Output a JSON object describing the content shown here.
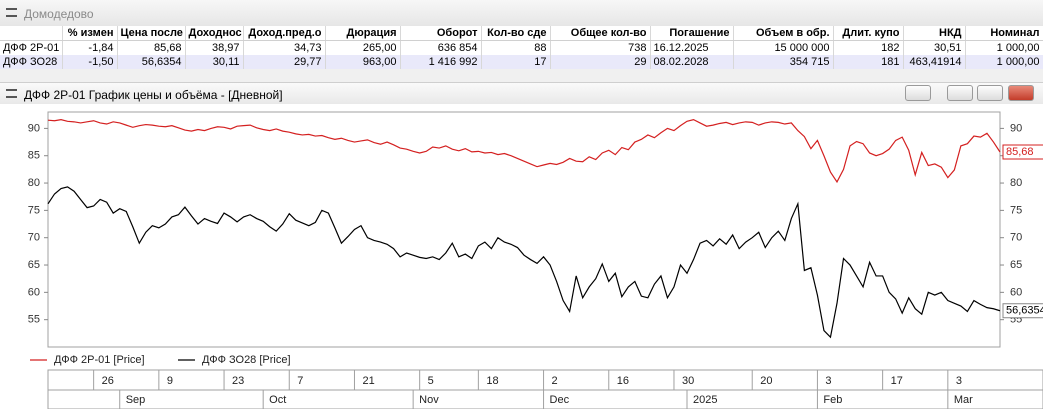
{
  "window": {
    "title": "Домодедово"
  },
  "table": {
    "headers": [
      "% измен",
      "Цена после",
      "Доходнос",
      "Доход.пред.о",
      "Дюрация",
      "Оборот",
      "Кол-во сде",
      "Общее кол-во",
      "Погашение",
      "Объем в обр.",
      "Длит. купо",
      "НКД",
      "Номинал"
    ],
    "rows": [
      [
        "ДФФ 2Р-01",
        "-1,84",
        "85,68",
        "38,97",
        "34,73",
        "265,00",
        "636 854",
        "88",
        "738",
        "16.12.2025",
        "15 000 000",
        "182",
        "30,51",
        "1 000,00"
      ],
      [
        "ДФФ ЗО28",
        "-1,50",
        "56,6354",
        "30,11",
        "29,77",
        "963,00",
        "1 416 992",
        "17",
        "29",
        "08.02.2028",
        "354 715",
        "181",
        "463,41914",
        "1 000,00"
      ]
    ]
  },
  "chart_window": {
    "title": "ДФФ 2Р-01 График цены и объёма - [Дневной]"
  },
  "chart_data": {
    "type": "line",
    "xlim": [
      0,
      146
    ],
    "ylim": [
      50,
      93
    ],
    "yticks": [
      55,
      60,
      65,
      70,
      75,
      80,
      85,
      90
    ],
    "xticks": [
      {
        "value": 7,
        "label": "26"
      },
      {
        "value": 17,
        "label": "9"
      },
      {
        "value": 27,
        "label": "23"
      },
      {
        "value": 37,
        "label": "7"
      },
      {
        "value": 47,
        "label": "21"
      },
      {
        "value": 57,
        "label": "5"
      },
      {
        "value": 66,
        "label": "18"
      },
      {
        "value": 76,
        "label": "2"
      },
      {
        "value": 86,
        "label": "16"
      },
      {
        "value": 96,
        "label": "30"
      },
      {
        "value": 108,
        "label": "20"
      },
      {
        "value": 118,
        "label": "3"
      },
      {
        "value": 128,
        "label": "17"
      },
      {
        "value": 138,
        "label": "3"
      }
    ],
    "month_ticks": [
      {
        "value": 11,
        "label": "Sep"
      },
      {
        "value": 33,
        "label": "Oct"
      },
      {
        "value": 56,
        "label": "Nov"
      },
      {
        "value": 76,
        "label": "Dec"
      },
      {
        "value": 98,
        "label": "2025"
      },
      {
        "value": 118,
        "label": "Feb"
      },
      {
        "value": 138,
        "label": "Mar"
      }
    ],
    "series": [
      {
        "name": "ДФФ 2Р-01 [Price]",
        "color": "#d42020",
        "last_value_label": "85,68",
        "values": [
          91.5,
          91.4,
          91.6,
          91.3,
          91.2,
          91.0,
          91.2,
          91.4,
          91.0,
          90.8,
          91.2,
          91.0,
          90.6,
          90.2,
          90.5,
          90.7,
          90.6,
          90.4,
          90.3,
          90.5,
          90.1,
          89.7,
          89.5,
          89.8,
          89.6,
          90.0,
          90.3,
          90.2,
          89.9,
          90.4,
          90.5,
          90.6,
          90.1,
          89.8,
          89.6,
          89.9,
          89.5,
          89.3,
          89.0,
          88.8,
          88.9,
          88.6,
          88.7,
          88.3,
          88.0,
          88.2,
          87.8,
          87.5,
          87.7,
          87.9,
          87.4,
          87.1,
          87.5,
          87.0,
          86.4,
          86.2,
          85.8,
          85.5,
          85.8,
          86.6,
          86.4,
          86.8,
          86.2,
          85.9,
          86.3,
          85.7,
          85.8,
          85.5,
          85.6,
          85.2,
          85.4,
          85.0,
          84.5,
          84.0,
          83.5,
          83.0,
          83.3,
          83.6,
          83.4,
          83.8,
          84.5,
          84.0,
          83.9,
          84.8,
          84.3,
          85.5,
          86.0,
          85.2,
          86.5,
          86.1,
          87.5,
          88.0,
          88.8,
          88.3,
          89.2,
          90.0,
          89.6,
          90.5,
          91.3,
          91.6,
          91.0,
          90.4,
          90.6,
          90.9,
          91.1,
          90.7,
          91.0,
          91.2,
          91.1,
          90.6,
          91.0,
          91.2,
          91.1,
          90.8,
          91.0,
          89.6,
          88.5,
          86.3,
          87.8,
          85.0,
          82.0,
          80.2,
          82.5,
          86.8,
          87.6,
          87.2,
          85.5,
          85.0,
          85.4,
          86.2,
          87.8,
          88.4,
          86.0,
          81.5,
          85.6,
          83.2,
          83.5,
          82.9,
          81.0,
          82.4,
          86.8,
          87.2,
          88.6,
          88.4,
          89.1,
          87.5,
          85.68
        ]
      },
      {
        "name": "ДФФ ЗО28 [Price]",
        "color": "#000000",
        "last_value_label": "56,6354",
        "values": [
          76.2,
          78.0,
          79.0,
          79.3,
          78.5,
          77.0,
          75.5,
          75.8,
          77.0,
          76.5,
          74.5,
          75.3,
          74.8,
          72.0,
          69.0,
          71.0,
          72.2,
          71.8,
          72.5,
          73.8,
          74.2,
          75.6,
          74.0,
          72.5,
          73.5,
          73.0,
          72.6,
          74.5,
          73.8,
          72.9,
          73.8,
          74.2,
          73.5,
          73.0,
          72.0,
          71.2,
          72.5,
          74.4,
          73.2,
          72.7,
          72.2,
          72.8,
          75.0,
          74.5,
          71.8,
          69.0,
          70.2,
          71.5,
          72.2,
          70.0,
          69.5,
          69.2,
          68.8,
          68.0,
          66.5,
          67.2,
          66.8,
          66.4,
          66.2,
          66.5,
          66.0,
          67.2,
          69.0,
          66.5,
          67.0,
          66.2,
          68.5,
          69.2,
          68.0,
          70.0,
          69.2,
          68.8,
          68.2,
          66.8,
          66.0,
          65.3,
          66.5,
          65.0,
          62.0,
          58.5,
          56.5,
          63.0,
          59.0,
          61.0,
          62.5,
          65.2,
          62.0,
          63.5,
          59.2,
          61.0,
          62.0,
          59.3,
          59.0,
          61.5,
          63.0,
          59.0,
          61.0,
          65.0,
          63.5,
          66.0,
          69.0,
          69.5,
          68.5,
          69.8,
          68.8,
          70.5,
          68.0,
          69.2,
          70.0,
          71.0,
          68.2,
          70.0,
          71.2,
          69.5,
          73.5,
          76.2,
          64.0,
          64.5,
          59.5,
          53.0,
          51.8,
          58.0,
          66.2,
          65.0,
          63.0,
          61.0,
          65.5,
          63.0,
          63.0,
          60.0,
          58.8,
          56.2,
          59.0,
          57.0,
          56.0,
          60.0,
          59.5,
          60.0,
          58.5,
          58.0,
          57.5,
          56.5,
          58.5,
          57.8,
          57.2,
          57.0,
          56.6354
        ]
      }
    ]
  }
}
